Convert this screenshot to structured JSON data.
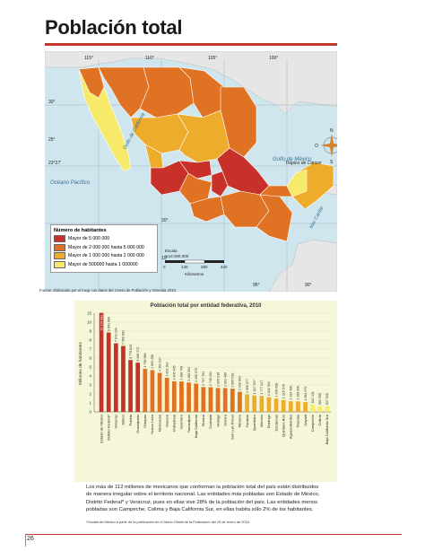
{
  "page": {
    "title": "Población total",
    "page_number": "26"
  },
  "map": {
    "lon_labels": [
      "115°",
      "110°",
      "105°",
      "100°",
      "95°",
      "90°"
    ],
    "lat_labels": [
      "30°",
      "25°",
      "20°",
      "15°"
    ],
    "tropic_left": "23°27'",
    "tropic_label": "Trópico de Cáncer",
    "labels": {
      "pacific": "Océano Pacífico",
      "gulf_california": "Golfo de California",
      "gulf_mexico": "Golfo de México",
      "caribe": "Mar Caribe"
    },
    "compass": {
      "n": "N",
      "s": "S",
      "e": "E",
      "o": "O"
    },
    "scale": {
      "label": "Escala",
      "ratio": "1:14 000 000",
      "ticks": [
        "0",
        "140",
        "280",
        "420"
      ],
      "unit": "Kilómetros"
    }
  },
  "legend": {
    "title": "Número de habitantes",
    "items": [
      {
        "label": "Mayor de 5 000 000",
        "color": "#c8312a"
      },
      {
        "label": "Mayor de 2 000 000 hasta 5 000 000",
        "color": "#df7223"
      },
      {
        "label": "Mayor de 1 000 000 hasta 2 000 000",
        "color": "#eeac2c"
      },
      {
        "label": "Mayor de 500000 hasta 1 000000",
        "color": "#f7ea6a"
      }
    ]
  },
  "source": "Fuente: Elaborado por el Inegi con datos del Censo de Población y Vivienda 2010.",
  "chart_data": {
    "type": "bar",
    "title": "Población total por entidad federativa, 2010",
    "ylabel": "Millones de habitantes",
    "ylim": [
      0,
      15
    ],
    "yticks": [
      0,
      1,
      2,
      3,
      4,
      5,
      6,
      7,
      8,
      9,
      10,
      15
    ],
    "categories": [
      "Estado de México",
      "Distrito Federal*",
      "Veracruz",
      "Jalisco",
      "Puebla",
      "Guanajuato",
      "Chiapas",
      "Nuevo León",
      "Michoacán",
      "Oaxaca",
      "Chihuahua",
      "Guerrero",
      "Tamaulipas",
      "Baja California",
      "Sinaloa",
      "Coahuila",
      "Hidalgo",
      "Sonora",
      "San Luis Potosí",
      "Tabasco",
      "Yucatán",
      "Querétaro",
      "Morelos",
      "Durango",
      "Zacatecas",
      "Quintana Roo",
      "Aguascalientes",
      "Tlaxcala",
      "Nayarit",
      "Campeche",
      "Colima",
      "Baja California Sur"
    ],
    "values": [
      15175862,
      8851080,
      7643194,
      7350682,
      5779829,
      5486372,
      4796580,
      4653458,
      4351037,
      3801962,
      3406465,
      3388768,
      3268554,
      3155070,
      2767761,
      2748391,
      2665018,
      2662480,
      2585518,
      2238603,
      1955577,
      1827937,
      1777227,
      1632934,
      1490668,
      1325578,
      1184996,
      1169936,
      1084979,
      822441,
      650555,
      637026
    ],
    "value_labels": [
      "15 175 862",
      "8 851 080",
      "7 643 194",
      "7 350 682",
      "5 779 829",
      "5 486 372",
      "4 796 580",
      "4 653 458",
      "4 351 037",
      "3 801 962",
      "3 406 465",
      "3 388 768",
      "3 268 554",
      "3 155 070",
      "2 767 761",
      "2 748 391",
      "2 665 018",
      "2 662 480",
      "2 585 518",
      "2 238 603",
      "1 955 577",
      "1 827 937",
      "1 777 227",
      "1 632 934",
      "1 490 668",
      "1 325 578",
      "1 184 996",
      "1 169 936",
      "1 084 979",
      "822 441",
      "650 555",
      "637 026"
    ],
    "colors": [
      "#c8312a",
      "#c8312a",
      "#c8312a",
      "#c8312a",
      "#c8312a",
      "#c8312a",
      "#df7223",
      "#df7223",
      "#df7223",
      "#df7223",
      "#df7223",
      "#df7223",
      "#df7223",
      "#df7223",
      "#df7223",
      "#df7223",
      "#df7223",
      "#df7223",
      "#df7223",
      "#df7223",
      "#eeac2c",
      "#eeac2c",
      "#eeac2c",
      "#eeac2c",
      "#eeac2c",
      "#eeac2c",
      "#eeac2c",
      "#eeac2c",
      "#eeac2c",
      "#f7ea6a",
      "#f7ea6a",
      "#f7ea6a"
    ]
  },
  "paragraph": "Los más de 112 millones de mexicanos que conforman la población total del país están distribuidos de manera irregular sobre el territorio nacional. Las entidades más pobladas son Estado de México, Distrito Federal* y Veracruz, pues en ellas vive 28% de la población del país. Las entidades menos pobladas son Campeche, Colima y Baja California Sur, en ellas habita sólo 2% de los habitantes.",
  "footnote": "*Ciudad de México a partir de la publicación en el Diario Oficial de la Federación del 29 de enero de 2016."
}
